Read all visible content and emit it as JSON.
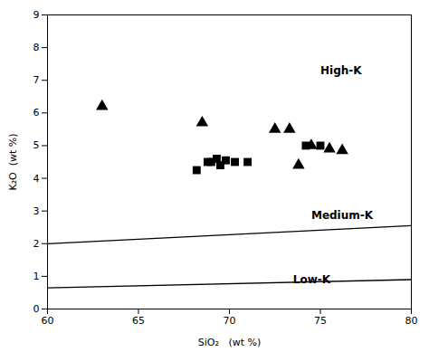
{
  "chart_data": {
    "type": "scatter",
    "xlabel": "SiO₂   (wt %)",
    "ylabel": "K₂O  (wt %)",
    "xlim": [
      60,
      80
    ],
    "ylim": [
      0,
      9
    ],
    "xticks": [
      60,
      65,
      70,
      75,
      80
    ],
    "yticks": [
      0,
      1,
      2,
      3,
      4,
      5,
      6,
      7,
      8,
      9
    ],
    "series": [
      {
        "type": "line",
        "color": "#000000",
        "x": [
          60,
          80
        ],
        "values": [
          0.65,
          0.9
        ]
      },
      {
        "type": "line",
        "color": "#000000",
        "x": [
          60,
          80
        ],
        "values": [
          2.0,
          2.55
        ]
      },
      {
        "type": "scatter",
        "marker": "triangle",
        "color": "#000000",
        "x": [
          63,
          68.5,
          72.5,
          73.3,
          73.8,
          74.5,
          75.5,
          76.2
        ],
        "values": [
          6.2,
          5.7,
          5.5,
          5.5,
          4.4,
          5.0,
          4.9,
          4.85
        ]
      },
      {
        "type": "scatter",
        "marker": "square",
        "color": "#000000",
        "x": [
          68.2,
          68.8,
          69.0,
          69.3,
          69.5,
          69.8,
          70.3,
          71.0,
          74.2,
          75.0
        ],
        "values": [
          4.25,
          4.5,
          4.5,
          4.6,
          4.4,
          4.55,
          4.5,
          4.5,
          5.0,
          5.0
        ]
      }
    ],
    "annotations": [
      {
        "text": "High-K",
        "x": 75.0,
        "y": 7.3
      },
      {
        "text": "Medium-K",
        "x": 74.5,
        "y": 2.85
      },
      {
        "text": "Low-K",
        "x": 73.5,
        "y": 0.9
      }
    ]
  }
}
